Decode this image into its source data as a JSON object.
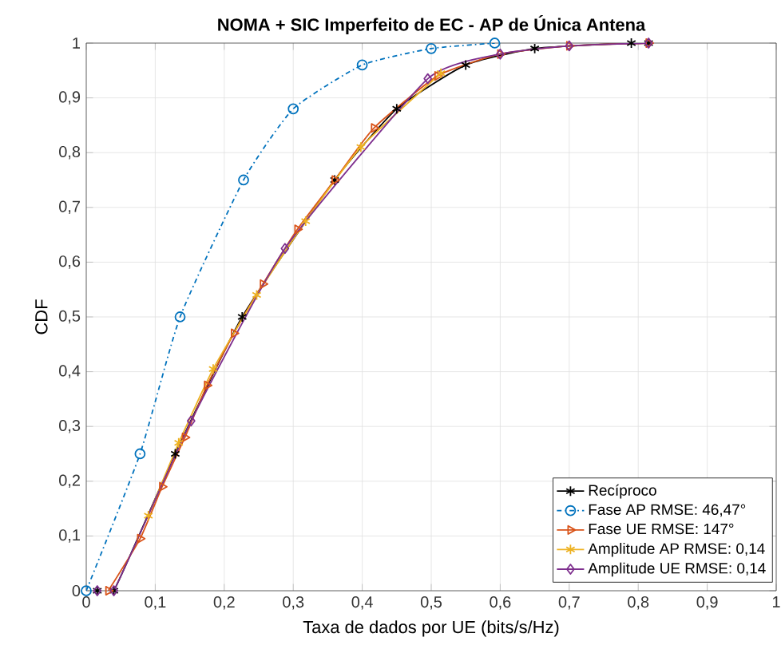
{
  "chart_data": {
    "type": "line",
    "title": "NOMA + SIC Imperfeito de EC - AP de Única Antena",
    "xlabel": "Taxa de dados por UE (bits/s/Hz)",
    "ylabel": "CDF",
    "series": [
      {
        "name": "Recíproco",
        "color": "#000000",
        "marker": "cross",
        "line_style": "solid",
        "x": [
          0.016,
          0.04,
          0.129,
          0.226,
          0.36,
          0.45,
          0.55,
          0.65,
          0.79,
          0.815
        ],
        "values": [
          0,
          0,
          0.25,
          0.5,
          0.75,
          0.88,
          0.96,
          0.99,
          1,
          1
        ]
      },
      {
        "name": "Fase AP RMSE: 46,47°",
        "color": "#0072bd",
        "marker": "circle",
        "line_style": "dashdot",
        "x": [
          0,
          0.078,
          0.136,
          0.228,
          0.3,
          0.4,
          0.5,
          0.592
        ],
        "values": [
          0,
          0.25,
          0.5,
          0.75,
          0.88,
          0.96,
          0.99,
          1
        ]
      },
      {
        "name": "Fase UE RMSE: 147°",
        "color": "#d95319",
        "marker": "triangle",
        "line_style": "solid",
        "x": [
          0.032,
          0.078,
          0.11,
          0.143,
          0.175,
          0.214,
          0.256,
          0.306,
          0.36,
          0.417,
          0.509,
          0.6,
          0.7,
          0.815
        ],
        "values": [
          0,
          0.095,
          0.19,
          0.28,
          0.375,
          0.47,
          0.56,
          0.66,
          0.75,
          0.845,
          0.94,
          0.98,
          0.995,
          1
        ]
      },
      {
        "name": "Amplitude AP RMSE: 0,14",
        "color": "#edb120",
        "marker": "cross",
        "line_style": "solid",
        "x": [
          0.09,
          0.134,
          0.184,
          0.247,
          0.318,
          0.398,
          0.514
        ],
        "values": [
          0.137,
          0.27,
          0.405,
          0.54,
          0.675,
          0.81,
          0.945
        ]
      },
      {
        "name": "Amplitude UE RMSE: 0,14",
        "color": "#7e2f8e",
        "marker": "diamond",
        "line_style": "solid",
        "x": [
          0.016,
          0.04,
          0.152,
          0.288,
          0.495,
          0.6,
          0.7,
          0.815
        ],
        "values": [
          0,
          0,
          0.31,
          0.625,
          0.935,
          0.98,
          0.995,
          1
        ]
      }
    ],
    "xlim": [
      0,
      1
    ],
    "ylim": [
      0,
      1
    ],
    "xticks": [
      0,
      {
        "value": 0.1,
        "label": "0,1"
      },
      {
        "value": 0.2,
        "label": "0,2"
      },
      {
        "value": 0.3,
        "label": "0,3"
      },
      {
        "value": 0.4,
        "label": "0,4"
      },
      {
        "value": 0.5,
        "label": "0,5"
      },
      {
        "value": 0.6,
        "label": "0,6"
      },
      {
        "value": 0.7,
        "label": "0,7"
      },
      {
        "value": 0.8,
        "label": "0,8"
      },
      {
        "value": 0.9,
        "label": "0,9"
      },
      1
    ],
    "yticks": [
      0,
      {
        "value": 0.1,
        "label": "0,1"
      },
      {
        "value": 0.2,
        "label": "0,2"
      },
      {
        "value": 0.3,
        "label": "0,3"
      },
      {
        "value": 0.4,
        "label": "0,4"
      },
      {
        "value": 0.5,
        "label": "0,5"
      },
      {
        "value": 0.6,
        "label": "0,6"
      },
      {
        "value": 0.7,
        "label": "0,7"
      },
      {
        "value": 0.8,
        "label": "0,8"
      },
      {
        "value": 0.9,
        "label": "0,9"
      },
      1
    ],
    "grid": true,
    "legend": "bottom right"
  }
}
